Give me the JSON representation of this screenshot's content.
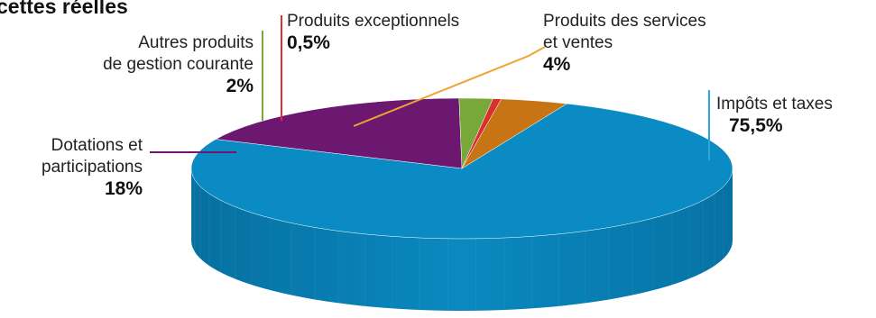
{
  "title": "cettes réelles",
  "colors": {
    "impots": "#0a8bc4",
    "dotations": "#6c1770",
    "autres": "#78a83a",
    "exceptionnels": "#d92f2f",
    "services": "#c77414"
  },
  "labels": {
    "impots_name": "Impôts et taxes",
    "impots_pct": "75,5%",
    "dotations_line1": "Dotations et",
    "dotations_line2": "participations",
    "dotations_pct": "18%",
    "autres_line1": "Autres produits",
    "autres_line2": "de gestion courante",
    "autres_pct": "2%",
    "exceptionnels_name": "Produits exceptionnels",
    "exceptionnels_pct": "0,5%",
    "services_line1": "Produits des services",
    "services_line2": "et ventes",
    "services_pct": "4%"
  },
  "chart_data": {
    "type": "pie",
    "title": "cettes réelles",
    "categories": [
      "Impôts et taxes",
      "Dotations et participations",
      "Autres produits de gestion courante",
      "Produits exceptionnels",
      "Produits des services et ventes"
    ],
    "values": [
      75.5,
      18,
      2,
      0.5,
      4
    ],
    "value_labels": [
      "75,5%",
      "18%",
      "2%",
      "0,5%",
      "4%"
    ],
    "style": "3d-tilted",
    "legend": "none"
  }
}
